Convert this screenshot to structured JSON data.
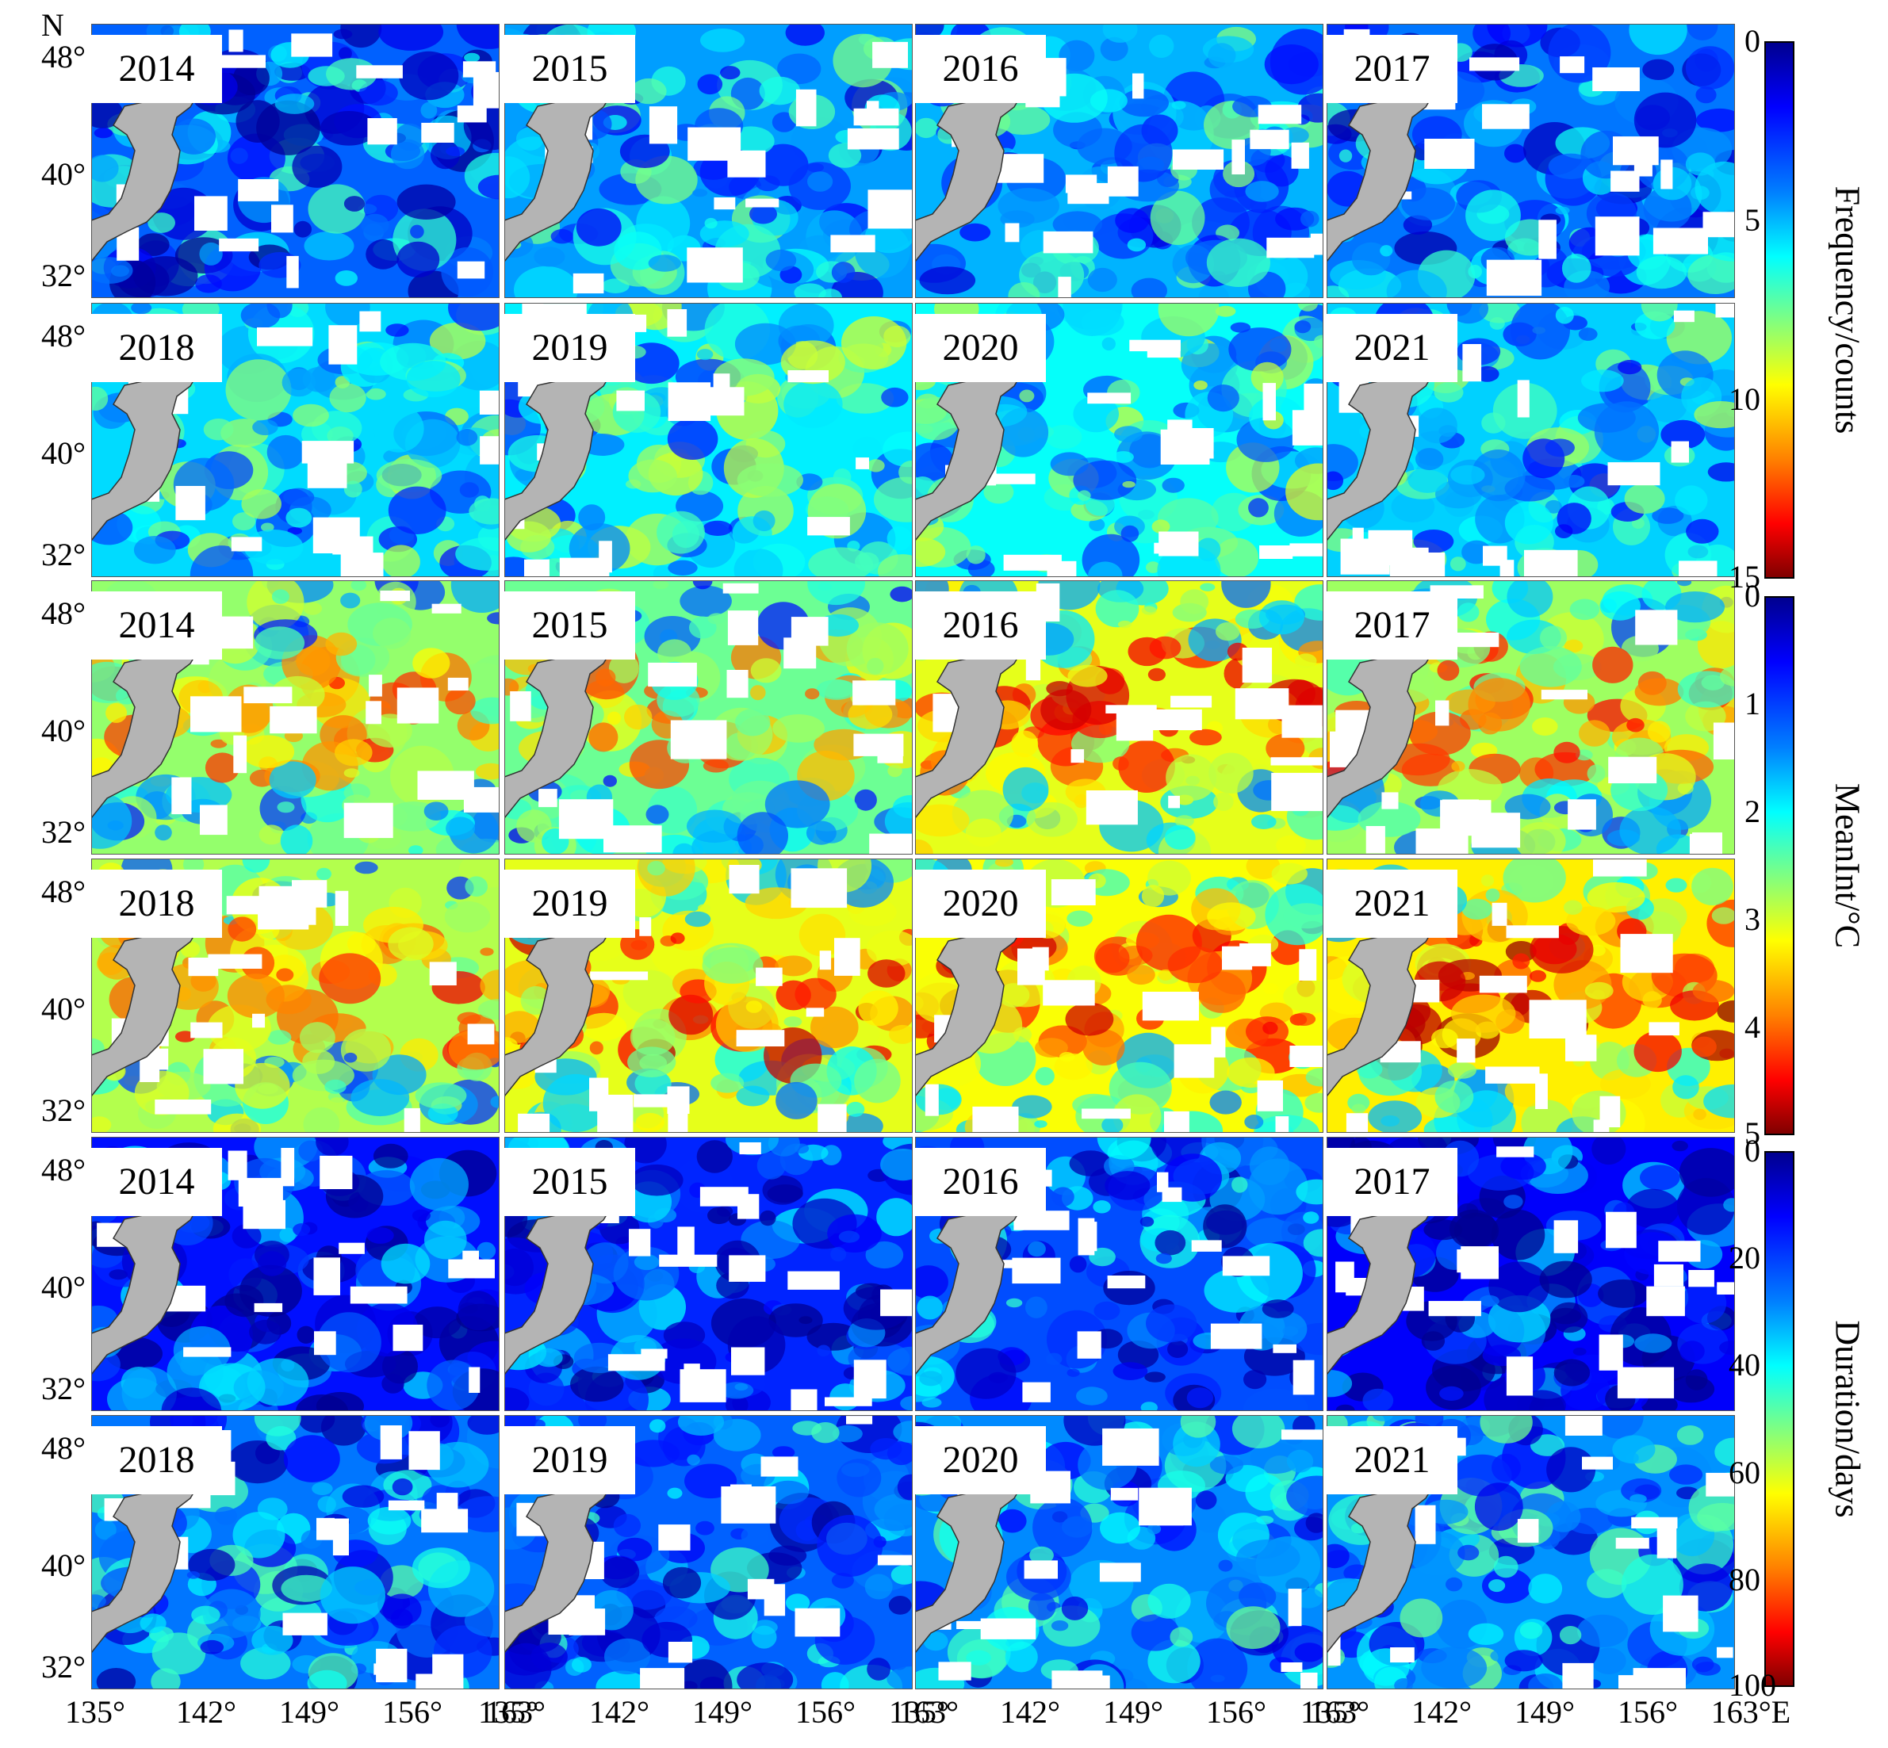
{
  "north_label": "N",
  "lat_ticks": [
    "48°",
    "40°",
    "32°"
  ],
  "lon_ticks": [
    "135°",
    "142°",
    "149°",
    "156°",
    "163°",
    "135°",
    "142°",
    "149°",
    "156°",
    "163°",
    "135°",
    "142°",
    "149°",
    "156°",
    "163°",
    "135°",
    "142°",
    "149°",
    "156°",
    "163°E"
  ],
  "years": [
    "2014",
    "2015",
    "2016",
    "2017",
    "2018",
    "2019",
    "2020",
    "2021"
  ],
  "colorbars": [
    {
      "title": "Frequency/counts",
      "ticks": [
        "0",
        "5",
        "10",
        "15"
      ],
      "range": [
        0,
        15
      ]
    },
    {
      "title": "MeanInt/°C",
      "ticks": [
        "0",
        "1",
        "2",
        "3",
        "4",
        "5"
      ],
      "range": [
        0,
        5
      ]
    },
    {
      "title": "Duration/days",
      "ticks": [
        "0",
        "20",
        "40",
        "60",
        "80",
        "100"
      ],
      "range": [
        0,
        100
      ]
    }
  ],
  "colors": {
    "land": "#b4b4b4",
    "no_data": "#ffffff",
    "colormap": [
      "#00008f",
      "#0000ff",
      "#0080ff",
      "#00ffff",
      "#80ff80",
      "#ffff00",
      "#ff8000",
      "#ff0000",
      "#800000"
    ]
  },
  "panel_levels": {
    "frequency": [
      0.22,
      0.28,
      0.3,
      0.24,
      0.34,
      0.36,
      0.38,
      0.33
    ],
    "meanint": [
      0.52,
      0.48,
      0.6,
      0.53,
      0.55,
      0.6,
      0.62,
      0.64
    ],
    "duration": [
      0.14,
      0.16,
      0.2,
      0.12,
      0.24,
      0.22,
      0.26,
      0.27
    ]
  }
}
